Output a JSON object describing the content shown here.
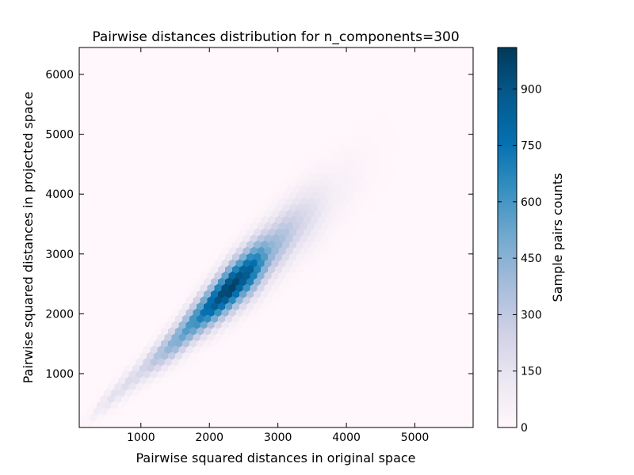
{
  "chart_data": {
    "type": "heatmap",
    "subtype": "hexbin",
    "title": "Pairwise distances distribution for n_components=300",
    "xlabel": "Pairwise squared distances in original space",
    "ylabel": "Pairwise squared distances in projected space",
    "xlim": [
      100,
      5850
    ],
    "ylim": [
      100,
      6450
    ],
    "xticks": [
      1000,
      2000,
      3000,
      4000,
      5000
    ],
    "yticks": [
      1000,
      2000,
      3000,
      4000,
      5000,
      6000
    ],
    "colorbar": {
      "label": "Sample pairs counts",
      "range": [
        0,
        1010
      ],
      "ticks": [
        0,
        150,
        300,
        450,
        600,
        750,
        900
      ],
      "colormap": "PuBu",
      "low_color": "#fff7fb",
      "high_color": "#023858"
    },
    "density_ridge": [
      {
        "x": 200,
        "y": 200,
        "count": 30
      },
      {
        "x": 500,
        "y": 520,
        "count": 150
      },
      {
        "x": 1000,
        "y": 1020,
        "count": 220
      },
      {
        "x": 1500,
        "y": 1520,
        "count": 480
      },
      {
        "x": 1800,
        "y": 1880,
        "count": 650
      },
      {
        "x": 2100,
        "y": 2200,
        "count": 900
      },
      {
        "x": 2300,
        "y": 2420,
        "count": 1000
      },
      {
        "x": 2600,
        "y": 2720,
        "count": 850
      },
      {
        "x": 2900,
        "y": 3050,
        "count": 450
      },
      {
        "x": 3300,
        "y": 3500,
        "count": 250
      },
      {
        "x": 3800,
        "y": 3950,
        "count": 70
      },
      {
        "x": 4300,
        "y": 4450,
        "count": 20
      },
      {
        "x": 4700,
        "y": 4800,
        "count": 5
      }
    ]
  }
}
